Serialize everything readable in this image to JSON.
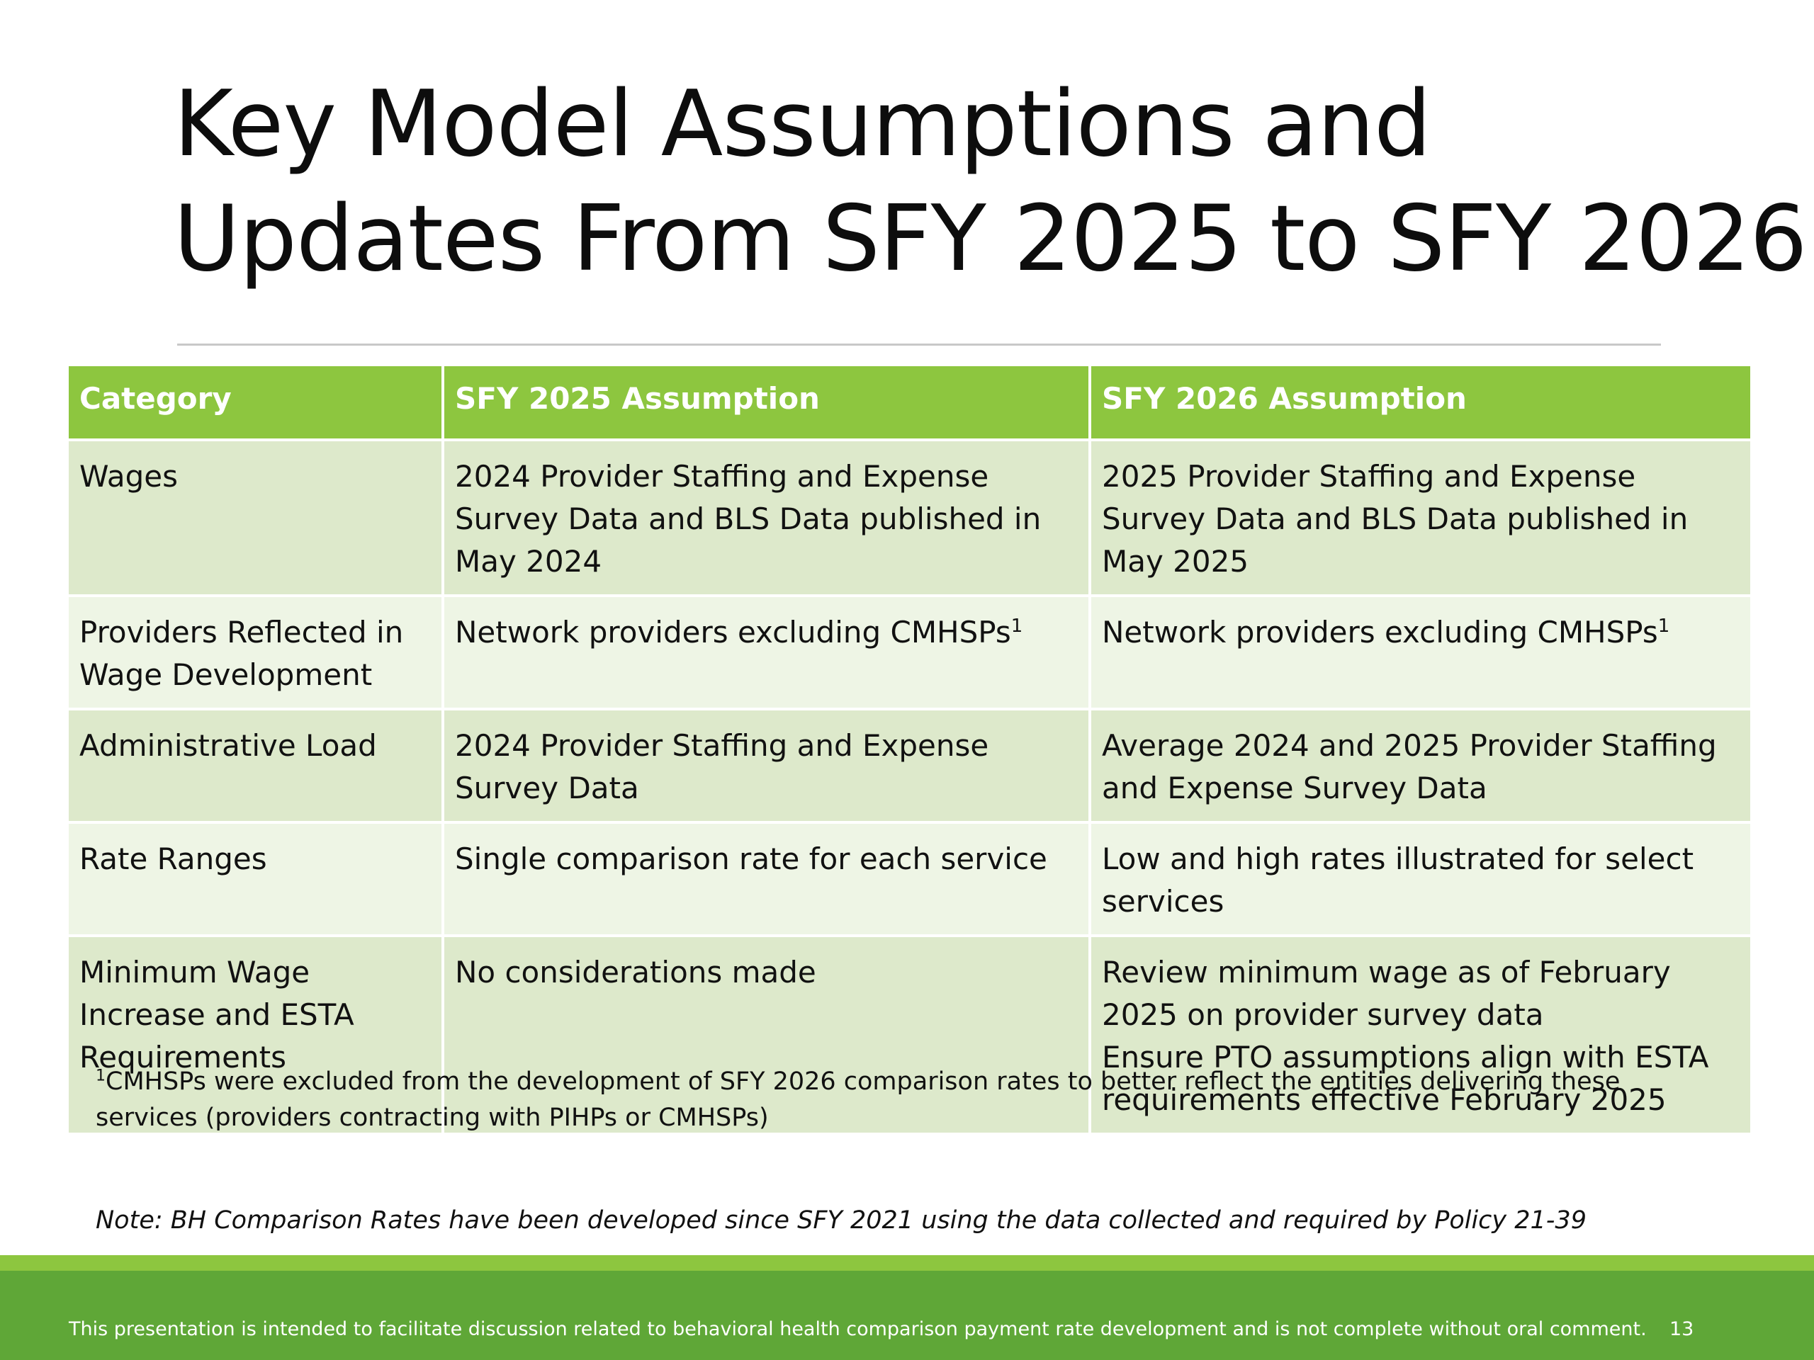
{
  "title": {
    "line1": "Key Model Assumptions and",
    "line2": "Updates From SFY 2025 to SFY 2026"
  },
  "table": {
    "headers": [
      "Category",
      "SFY 2025 Assumption",
      "SFY 2026 Assumption"
    ],
    "rows": [
      {
        "category": "Wages",
        "sfy2025": "2024 Provider Staffing and Expense Survey Data and BLS Data published in May 2024",
        "sfy2026": "2025 Provider Staffing and Expense Survey Data and BLS Data published in May 2025"
      },
      {
        "category": "Providers Reflected in Wage Development",
        "sfy2025": "Network providers excluding CMHSPs",
        "sfy2025_sup": "1",
        "sfy2026": "Network providers excluding CMHSPs",
        "sfy2026_sup": "1"
      },
      {
        "category": "Administrative Load",
        "sfy2025": "2024 Provider Staffing and Expense Survey Data",
        "sfy2026": "Average 2024 and 2025 Provider Staffing and Expense Survey Data"
      },
      {
        "category": "Rate Ranges",
        "sfy2025": "Single comparison rate for each service",
        "sfy2026": "Low and high rates illustrated for select services"
      },
      {
        "category": "Minimum Wage Increase and ESTA Requirements",
        "sfy2025": "No considerations made",
        "sfy2026_line1": "Review minimum wage as of February 2025 on provider survey data",
        "sfy2026_line2": "Ensure PTO assumptions align with ESTA requirements effective February 2025"
      }
    ]
  },
  "footnote": {
    "marker": "1",
    "text": "CMHSPs were excluded from the development of SFY 2026 comparison rates to better reflect the entities delivering these services (providers contracting with PIHPs or CMHSPs)"
  },
  "note": "Note: BH Comparison Rates have been developed since SFY 2021 using the data collected and required by Policy 21-39",
  "footer": {
    "disclaimer": "This presentation is intended to facilitate discussion related to behavioral health comparison payment rate development and is not complete without oral comment.",
    "page_number": "13"
  },
  "colors": {
    "header_green": "#8dc63f",
    "footer_green": "#5fa737",
    "row_dark": "#dde9cb",
    "row_light": "#eef5e5"
  }
}
